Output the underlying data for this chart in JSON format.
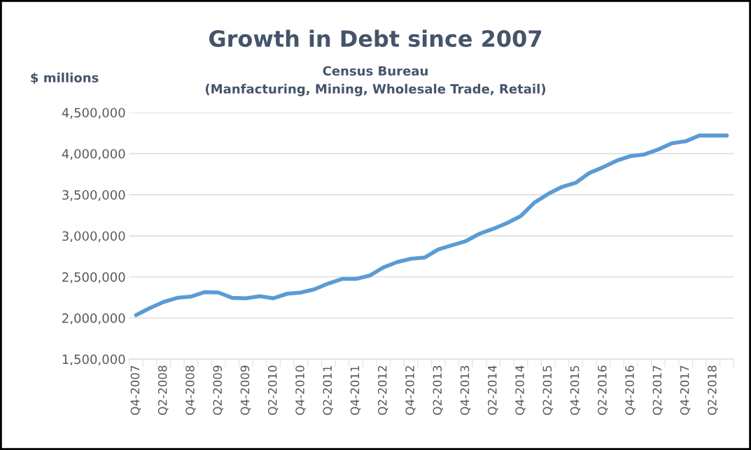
{
  "chart_data": {
    "type": "line",
    "title": "Growth in Debt since 2007",
    "subtitle": "Census Bureau\n(Manfacturing, Mining, Wholesale Trade, Retail)",
    "ylabel": "$ millions",
    "categories": [
      "Q4-2007",
      null,
      "Q2-2008",
      null,
      "Q4-2008",
      null,
      "Q2-2009",
      null,
      "Q4-2009",
      null,
      "Q2-2010",
      null,
      "Q4-2010",
      null,
      "Q2-2011",
      null,
      "Q4-2011",
      null,
      "Q2-2012",
      null,
      "Q4-2012",
      null,
      "Q2-2013",
      null,
      "Q4-2013",
      null,
      "Q2-2014",
      null,
      "Q4-2014",
      null,
      "Q2-2015",
      null,
      "Q4-2015",
      null,
      "Q2-2016",
      null,
      "Q4-2016",
      null,
      "Q2-2017",
      null,
      "Q4-2017",
      null,
      "Q2-2018",
      null
    ],
    "series": [
      {
        "color": "#5b9bd5",
        "values": [
          2035000,
          2120000,
          2195000,
          2245000,
          2260000,
          2315000,
          2310000,
          2245000,
          2240000,
          2265000,
          2240000,
          2295000,
          2310000,
          2350000,
          2420000,
          2475000,
          2475000,
          2515000,
          2615000,
          2680000,
          2720000,
          2735000,
          2835000,
          2885000,
          2935000,
          3025000,
          3085000,
          3155000,
          3240000,
          3405000,
          3510000,
          3595000,
          3645000,
          3765000,
          3835000,
          3915000,
          3970000,
          3990000,
          4050000,
          4125000,
          4150000,
          4220000,
          4220000,
          4220000
        ]
      }
    ],
    "ylim": [
      1500000,
      4500000
    ],
    "yticks": [
      {
        "value": 1500000,
        "label": "1,500,000"
      },
      {
        "value": 2000000,
        "label": "2,000,000"
      },
      {
        "value": 2500000,
        "label": "2,500,000"
      },
      {
        "value": 3000000,
        "label": "3,000,000"
      },
      {
        "value": 3500000,
        "label": "3,500,000"
      },
      {
        "value": 4000000,
        "label": "4,000,000"
      },
      {
        "value": 4500000,
        "label": "4,500,000"
      }
    ],
    "grid": "y",
    "marker": "none",
    "line_style": "solid"
  }
}
